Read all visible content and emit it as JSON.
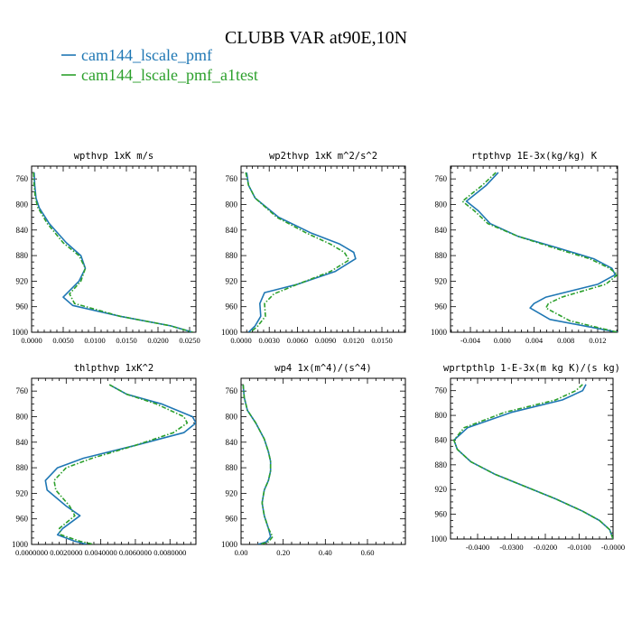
{
  "figure": {
    "title": "CLUBB VAR at90E,10N",
    "legend": [
      {
        "name": "cam144_lscale_pmf",
        "color": "#1f77b4"
      },
      {
        "name": "cam144_lscale_pmf_a1test",
        "color": "#2ca02c"
      }
    ]
  },
  "chart_data": [
    {
      "type": "line",
      "title": "wpthvp   1xK m/s",
      "xlim": [
        0,
        0.026
      ],
      "ylim": [
        740,
        1000
      ],
      "x_ticks": [
        {
          "v": 0,
          "label": "0.0000"
        },
        {
          "v": 0.005,
          "label": "0.0050"
        },
        {
          "v": 0.01,
          "label": "0.0100"
        },
        {
          "v": 0.015,
          "label": "0.0150"
        },
        {
          "v": 0.02,
          "label": "0.0200"
        },
        {
          "v": 0.025,
          "label": "0.0250"
        }
      ],
      "y_ticks": [
        760,
        800,
        840,
        880,
        920,
        960,
        1000
      ],
      "series": [
        {
          "name": "cam144_lscale_pmf",
          "color": "#1f77b4",
          "dashed": false,
          "points": [
            [
              0.0004,
              750
            ],
            [
              0.0005,
              770
            ],
            [
              0.0007,
              790
            ],
            [
              0.0012,
              805
            ],
            [
              0.0028,
              830
            ],
            [
              0.0055,
              860
            ],
            [
              0.0078,
              880
            ],
            [
              0.0085,
              900
            ],
            [
              0.0075,
              920
            ],
            [
              0.005,
              945
            ],
            [
              0.0065,
              958
            ],
            [
              0.014,
              975
            ],
            [
              0.022,
              990
            ],
            [
              0.0255,
              1000
            ]
          ]
        },
        {
          "name": "cam144_lscale_pmf_a1test",
          "color": "#2ca02c",
          "dashed": true,
          "points": [
            [
              0.0003,
              750
            ],
            [
              0.0004,
              770
            ],
            [
              0.0006,
              790
            ],
            [
              0.001,
              805
            ],
            [
              0.0025,
              830
            ],
            [
              0.005,
              860
            ],
            [
              0.0075,
              880
            ],
            [
              0.0085,
              900
            ],
            [
              0.0078,
              920
            ],
            [
              0.006,
              940
            ],
            [
              0.0068,
              955
            ],
            [
              0.014,
              975
            ],
            [
              0.022,
              990
            ],
            [
              0.0255,
              1000
            ]
          ]
        }
      ]
    },
    {
      "type": "line",
      "title": "wp2thvp   1xK m^2/s^2",
      "xlim": [
        0,
        0.0175
      ],
      "ylim": [
        740,
        1000
      ],
      "x_ticks": [
        {
          "v": 0,
          "label": "0.0000"
        },
        {
          "v": 0.003,
          "label": "0.0030"
        },
        {
          "v": 0.006,
          "label": "0.0060"
        },
        {
          "v": 0.009,
          "label": "0.0090"
        },
        {
          "v": 0.012,
          "label": "0.0120"
        },
        {
          "v": 0.015,
          "label": "0.0150"
        }
      ],
      "y_ticks": [
        760,
        800,
        840,
        880,
        920,
        960,
        1000
      ],
      "series": [
        {
          "name": "cam144_lscale_pmf",
          "color": "#1f77b4",
          "dashed": false,
          "points": [
            [
              0.0006,
              750
            ],
            [
              0.0008,
              770
            ],
            [
              0.0015,
              790
            ],
            [
              0.004,
              820
            ],
            [
              0.0075,
              845
            ],
            [
              0.0105,
              862
            ],
            [
              0.012,
              875
            ],
            [
              0.0122,
              885
            ],
            [
              0.01,
              905
            ],
            [
              0.006,
              925
            ],
            [
              0.0025,
              938
            ],
            [
              0.002,
              955
            ],
            [
              0.0021,
              975
            ],
            [
              0.0015,
              990
            ],
            [
              0.0008,
              1000
            ]
          ]
        },
        {
          "name": "cam144_lscale_pmf_a1test",
          "color": "#2ca02c",
          "dashed": true,
          "points": [
            [
              0.0005,
              750
            ],
            [
              0.0008,
              770
            ],
            [
              0.0015,
              790
            ],
            [
              0.0038,
              820
            ],
            [
              0.007,
              845
            ],
            [
              0.0095,
              862
            ],
            [
              0.011,
              875
            ],
            [
              0.0115,
              887
            ],
            [
              0.0095,
              905
            ],
            [
              0.006,
              925
            ],
            [
              0.0035,
              940
            ],
            [
              0.0025,
              955
            ],
            [
              0.0026,
              975
            ],
            [
              0.0018,
              990
            ],
            [
              0.001,
              1000
            ]
          ]
        }
      ]
    },
    {
      "type": "line",
      "title": "rtpthvp   1E-3x(kg/kg) K",
      "xlim": [
        -0.0065,
        0.0145
      ],
      "ylim": [
        740,
        1000
      ],
      "x_ticks": [
        {
          "v": -0.004,
          "label": "-0.004"
        },
        {
          "v": 0,
          "label": "0.000"
        },
        {
          "v": 0.004,
          "label": "0.004"
        },
        {
          "v": 0.008,
          "label": "0.008"
        },
        {
          "v": 0.012,
          "label": "0.012"
        }
      ],
      "y_ticks": [
        760,
        800,
        840,
        880,
        920,
        960,
        1000
      ],
      "series": [
        {
          "name": "cam144_lscale_pmf",
          "color": "#1f77b4",
          "dashed": false,
          "points": [
            [
              -0.0005,
              750
            ],
            [
              -0.002,
              770
            ],
            [
              -0.0045,
              795
            ],
            [
              -0.003,
              810
            ],
            [
              -0.0015,
              830
            ],
            [
              0.002,
              850
            ],
            [
              0.007,
              868
            ],
            [
              0.0115,
              885
            ],
            [
              0.0138,
              900
            ],
            [
              0.0142,
              910
            ],
            [
              0.012,
              925
            ],
            [
              0.0055,
              945
            ],
            [
              0.004,
              955
            ],
            [
              0.0035,
              962
            ],
            [
              0.006,
              980
            ],
            [
              0.0145,
              1000
            ]
          ]
        },
        {
          "name": "cam144_lscale_pmf_a1test",
          "color": "#2ca02c",
          "dashed": true,
          "points": [
            [
              -0.0008,
              750
            ],
            [
              -0.0025,
              770
            ],
            [
              -0.005,
              795
            ],
            [
              -0.0035,
              810
            ],
            [
              -0.0018,
              830
            ],
            [
              0.002,
              850
            ],
            [
              0.0065,
              868
            ],
            [
              0.011,
              885
            ],
            [
              0.0135,
              900
            ],
            [
              0.0145,
              910
            ],
            [
              0.013,
              925
            ],
            [
              0.0075,
              945
            ],
            [
              0.0058,
              955
            ],
            [
              0.0055,
              962
            ],
            [
              0.0085,
              982
            ],
            [
              0.0145,
              1000
            ]
          ]
        }
      ]
    },
    {
      "type": "line",
      "title": "thlpthvp   1xK^2",
      "xlim": [
        0,
        0.0095
      ],
      "ylim": [
        740,
        1000
      ],
      "x_ticks": [
        {
          "v": 0,
          "label": "0.0000000"
        },
        {
          "v": 0.002,
          "label": "0.0020000"
        },
        {
          "v": 0.004,
          "label": "0.0040000"
        },
        {
          "v": 0.006,
          "label": "0.0060000"
        },
        {
          "v": 0.008,
          "label": "0.0080000"
        }
      ],
      "y_ticks": [
        760,
        800,
        840,
        880,
        920,
        960,
        1000
      ],
      "series": [
        {
          "name": "cam144_lscale_pmf",
          "color": "#1f77b4",
          "dashed": false,
          "points": [
            [
              0.0045,
              750
            ],
            [
              0.0055,
              765
            ],
            [
              0.0075,
              780
            ],
            [
              0.0093,
              800
            ],
            [
              0.0095,
              810
            ],
            [
              0.0088,
              825
            ],
            [
              0.006,
              845
            ],
            [
              0.003,
              865
            ],
            [
              0.0015,
              880
            ],
            [
              0.0008,
              900
            ],
            [
              0.0009,
              915
            ],
            [
              0.002,
              940
            ],
            [
              0.0028,
              955
            ],
            [
              0.0018,
              975
            ],
            [
              0.0015,
              985
            ],
            [
              0.0025,
              995
            ],
            [
              0.0032,
              1000
            ]
          ]
        },
        {
          "name": "cam144_lscale_pmf_a1test",
          "color": "#2ca02c",
          "dashed": true,
          "points": [
            [
              0.0045,
              750
            ],
            [
              0.0055,
              765
            ],
            [
              0.0072,
              780
            ],
            [
              0.0088,
              800
            ],
            [
              0.009,
              810
            ],
            [
              0.0082,
              825
            ],
            [
              0.006,
              845
            ],
            [
              0.0035,
              865
            ],
            [
              0.002,
              880
            ],
            [
              0.0013,
              900
            ],
            [
              0.0014,
              915
            ],
            [
              0.0022,
              940
            ],
            [
              0.0025,
              955
            ],
            [
              0.0016,
              975
            ],
            [
              0.0017,
              985
            ],
            [
              0.0028,
              995
            ],
            [
              0.0036,
              1000
            ]
          ]
        }
      ]
    },
    {
      "type": "line",
      "title": "wp4   1x(m^4)/(s^4)",
      "xlim": [
        0,
        0.78
      ],
      "ylim": [
        740,
        1000
      ],
      "x_ticks": [
        {
          "v": 0,
          "label": "0.00"
        },
        {
          "v": 0.2,
          "label": "0.20"
        },
        {
          "v": 0.4,
          "label": "0.40"
        },
        {
          "v": 0.6,
          "label": "0.60"
        }
      ],
      "y_ticks": [
        760,
        800,
        840,
        880,
        920,
        960,
        1000
      ],
      "series": [
        {
          "name": "cam144_lscale_pmf",
          "color": "#1f77b4",
          "dashed": false,
          "points": [
            [
              0.01,
              750
            ],
            [
              0.015,
              770
            ],
            [
              0.03,
              790
            ],
            [
              0.07,
              810
            ],
            [
              0.11,
              835
            ],
            [
              0.13,
              855
            ],
            [
              0.14,
              870
            ],
            [
              0.14,
              885
            ],
            [
              0.13,
              900
            ],
            [
              0.11,
              915
            ],
            [
              0.1,
              935
            ],
            [
              0.11,
              955
            ],
            [
              0.13,
              975
            ],
            [
              0.14,
              988
            ],
            [
              0.12,
              996
            ],
            [
              0.08,
              1000
            ]
          ]
        },
        {
          "name": "cam144_lscale_pmf_a1test",
          "color": "#2ca02c",
          "dashed": true,
          "points": [
            [
              0.01,
              750
            ],
            [
              0.015,
              770
            ],
            [
              0.03,
              790
            ],
            [
              0.07,
              810
            ],
            [
              0.11,
              835
            ],
            [
              0.13,
              855
            ],
            [
              0.14,
              870
            ],
            [
              0.14,
              885
            ],
            [
              0.13,
              900
            ],
            [
              0.11,
              915
            ],
            [
              0.1,
              935
            ],
            [
              0.11,
              955
            ],
            [
              0.13,
              975
            ],
            [
              0.15,
              988
            ],
            [
              0.13,
              996
            ],
            [
              0.09,
              1000
            ]
          ]
        }
      ]
    },
    {
      "type": "line",
      "title": "wprtpthlp   1-E-3x(m kg K)/(s kg)",
      "xlim": [
        -0.048,
        0
      ],
      "ylim": [
        740,
        1000
      ],
      "x_ticks": [
        {
          "v": -0.04,
          "label": "-0.0400"
        },
        {
          "v": -0.03,
          "label": "-0.0300"
        },
        {
          "v": -0.02,
          "label": "-0.0200"
        },
        {
          "v": -0.01,
          "label": "-0.0100"
        },
        {
          "v": 0,
          "label": "-0.0000"
        }
      ],
      "y_ticks": [
        760,
        800,
        840,
        880,
        920,
        960,
        1000
      ],
      "series": [
        {
          "name": "cam144_lscale_pmf",
          "color": "#1f77b4",
          "dashed": false,
          "points": [
            [
              -0.008,
              750
            ],
            [
              -0.009,
              760
            ],
            [
              -0.015,
              775
            ],
            [
              -0.03,
              795
            ],
            [
              -0.043,
              820
            ],
            [
              -0.047,
              840
            ],
            [
              -0.046,
              855
            ],
            [
              -0.042,
              875
            ],
            [
              -0.035,
              895
            ],
            [
              -0.026,
              915
            ],
            [
              -0.017,
              935
            ],
            [
              -0.009,
              955
            ],
            [
              -0.004,
              970
            ],
            [
              -0.001,
              985
            ],
            [
              0,
              1000
            ]
          ]
        },
        {
          "name": "cam144_lscale_pmf_a1test",
          "color": "#2ca02c",
          "dashed": true,
          "points": [
            [
              -0.009,
              750
            ],
            [
              -0.011,
              760
            ],
            [
              -0.017,
              775
            ],
            [
              -0.032,
              795
            ],
            [
              -0.044,
              820
            ],
            [
              -0.047,
              840
            ],
            [
              -0.046,
              855
            ],
            [
              -0.042,
              875
            ],
            [
              -0.035,
              895
            ],
            [
              -0.026,
              915
            ],
            [
              -0.017,
              935
            ],
            [
              -0.009,
              955
            ],
            [
              -0.004,
              970
            ],
            [
              -0.001,
              985
            ],
            [
              0,
              1000
            ]
          ]
        }
      ]
    }
  ]
}
